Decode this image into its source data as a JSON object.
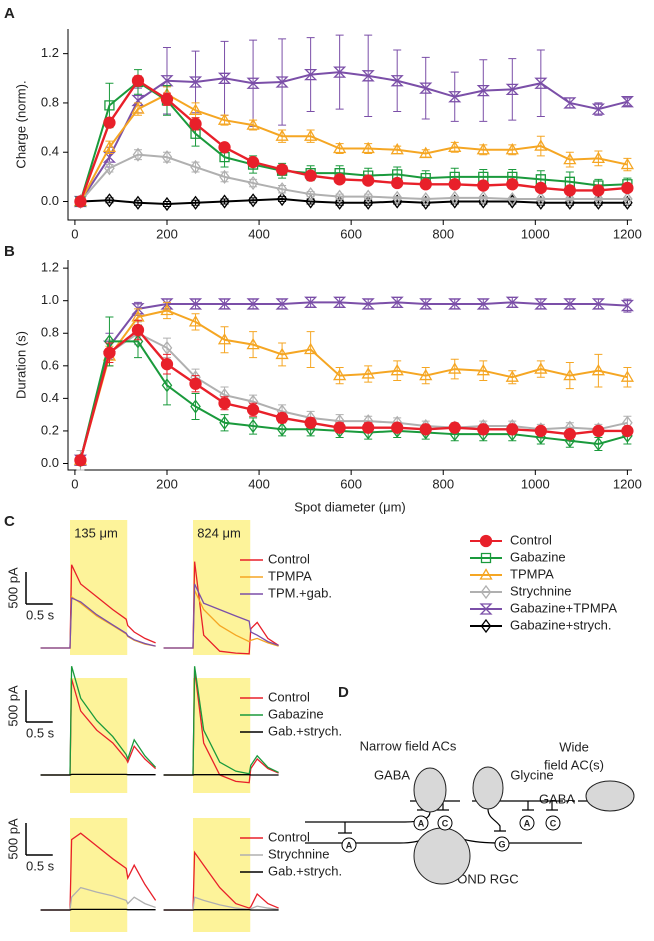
{
  "panel_labels": [
    "A",
    "B",
    "C",
    "D"
  ],
  "chart_data": [
    {
      "type": "line",
      "ylabel": "Charge (norm).",
      "x": [
        12,
        75,
        137,
        200,
        262,
        325,
        387,
        450,
        512,
        575,
        637,
        700,
        762,
        825,
        887,
        950,
        1012,
        1075,
        1137,
        1200
      ],
      "xlim": [
        -15,
        1210
      ],
      "ylim": [
        -0.15,
        1.4
      ],
      "xticks": [
        0,
        200,
        400,
        600,
        800,
        1000,
        1200
      ],
      "yticks": [
        {
          "value": 0,
          "label": "0.0"
        },
        0.4,
        0.8,
        1.2
      ],
      "series": [
        {
          "name": "Control",
          "color": "#e8202a",
          "marker": "circle",
          "values": [
            0,
            0.64,
            0.98,
            0.83,
            0.63,
            0.44,
            0.32,
            0.26,
            0.21,
            0.18,
            0.17,
            0.15,
            0.14,
            0.14,
            0.13,
            0.14,
            0.11,
            0.09,
            0.09,
            0.11
          ],
          "errors": [
            0,
            0.03,
            0.04,
            0.05,
            0.05,
            0.03,
            0.03,
            0.03,
            0.03,
            0.03,
            0.03,
            0.03,
            0.03,
            0.03,
            0.03,
            0.03,
            0.03,
            0.03,
            0.03,
            0.03
          ]
        },
        {
          "name": "Gabazine",
          "color": "#1a9a3c",
          "marker": "square",
          "values": [
            0,
            0.78,
            0.97,
            0.82,
            0.55,
            0.36,
            0.3,
            0.25,
            0.23,
            0.23,
            0.21,
            0.22,
            0.19,
            0.2,
            0.2,
            0.2,
            0.18,
            0.16,
            0.13,
            0.14
          ],
          "errors": [
            0,
            0.18,
            0.1,
            0.12,
            0.1,
            0.08,
            0.07,
            0.06,
            0.06,
            0.06,
            0.06,
            0.06,
            0.06,
            0.07,
            0.06,
            0.06,
            0.07,
            0.08,
            0.05,
            0.05
          ]
        },
        {
          "name": "TPMPA",
          "color": "#f5a623",
          "marker": "triangle",
          "values": [
            0,
            0.44,
            0.75,
            0.87,
            0.74,
            0.66,
            0.62,
            0.53,
            0.53,
            0.43,
            0.43,
            0.42,
            0.39,
            0.44,
            0.42,
            0.42,
            0.45,
            0.34,
            0.35,
            0.3
          ],
          "errors": [
            0,
            0.05,
            0.05,
            0.06,
            0.06,
            0.04,
            0.04,
            0.05,
            0.05,
            0.04,
            0.04,
            0.03,
            0.03,
            0.04,
            0.04,
            0.04,
            0.08,
            0.06,
            0.06,
            0.05
          ]
        },
        {
          "name": "Strychnine",
          "color": "#b0b0b0",
          "marker": "diamond",
          "values": [
            0,
            0.27,
            0.38,
            0.36,
            0.28,
            0.2,
            0.15,
            0.1,
            0.06,
            0.04,
            0.04,
            0.03,
            0.02,
            0.03,
            0.03,
            0.02,
            0.02,
            0.02,
            0.02,
            0.02
          ],
          "errors": [
            0,
            0.03,
            0.04,
            0.04,
            0.04,
            0.04,
            0.03,
            0.03,
            0.02,
            0.02,
            0.02,
            0.01,
            0.01,
            0.01,
            0.01,
            0.01,
            0.01,
            0.01,
            0.01,
            0.01
          ]
        },
        {
          "name": "Gabazine+TPMPA",
          "color": "#7b4fa8",
          "marker": "hourglass",
          "values": [
            0,
            0.36,
            0.82,
            0.98,
            0.97,
            1.0,
            0.96,
            0.97,
            1.03,
            1.05,
            1.02,
            0.98,
            0.92,
            0.85,
            0.9,
            0.91,
            0.96,
            0.8,
            0.75,
            0.81
          ],
          "errors": [
            0,
            0.08,
            0.1,
            0.27,
            0.25,
            0.3,
            0.35,
            0.35,
            0.3,
            0.3,
            0.33,
            0.25,
            0.25,
            0.2,
            0.25,
            0.25,
            0.27,
            0.04,
            0.05,
            0.03
          ]
        },
        {
          "name": "Gabazine+strych.",
          "color": "#000000",
          "marker": "diamond",
          "values": [
            0,
            0.01,
            -0.01,
            -0.02,
            -0.01,
            0,
            0.01,
            0.02,
            0,
            -0.01,
            -0.01,
            0,
            -0.01,
            0,
            0,
            0,
            -0.01,
            -0.01,
            -0.01,
            -0.01
          ],
          "errors": [
            0,
            0.02,
            0.02,
            0.02,
            0.02,
            0.02,
            0.02,
            0.02,
            0.02,
            0.02,
            0.02,
            0.02,
            0.02,
            0.02,
            0.02,
            0.02,
            0.02,
            0.02,
            0.02,
            0.02
          ]
        }
      ]
    },
    {
      "type": "line",
      "ylabel": "Duration (s)",
      "xlabel": "Spot diameter (μm)",
      "x": [
        12,
        75,
        137,
        200,
        262,
        325,
        387,
        450,
        512,
        575,
        637,
        700,
        762,
        825,
        887,
        950,
        1012,
        1075,
        1137,
        1200
      ],
      "xlim": [
        -15,
        1210
      ],
      "ylim": [
        -0.04,
        1.25
      ],
      "xticks": [
        0,
        200,
        400,
        600,
        800,
        1000,
        1200
      ],
      "yticks": [
        {
          "value": 0,
          "label": "0.0"
        },
        0.2,
        0.4,
        0.6,
        0.8,
        {
          "value": 1,
          "label": "1.0"
        },
        1.2
      ],
      "series": [
        {
          "color": "#e8202a",
          "marker": "circle",
          "values": [
            0.02,
            0.68,
            0.82,
            0.61,
            0.49,
            0.37,
            0.33,
            0.28,
            0.25,
            0.22,
            0.22,
            0.22,
            0.21,
            0.22,
            0.21,
            0.21,
            0.2,
            0.18,
            0.2,
            0.2
          ],
          "errors": [
            0.03,
            0.06,
            0.06,
            0.06,
            0.05,
            0.04,
            0.04,
            0.03,
            0.03,
            0.03,
            0.03,
            0.02,
            0.02,
            0.02,
            0.02,
            0.02,
            0.02,
            0.02,
            0.02,
            0.02
          ]
        },
        {
          "color": "#1a9a3c",
          "marker": "diamond",
          "values": [
            0.02,
            0.75,
            0.75,
            0.48,
            0.35,
            0.25,
            0.23,
            0.21,
            0.21,
            0.2,
            0.19,
            0.2,
            0.19,
            0.18,
            0.18,
            0.18,
            0.16,
            0.14,
            0.12,
            0.17
          ],
          "errors": [
            0.03,
            0.15,
            0.1,
            0.12,
            0.08,
            0.05,
            0.05,
            0.04,
            0.04,
            0.04,
            0.04,
            0.04,
            0.04,
            0.04,
            0.04,
            0.04,
            0.04,
            0.04,
            0.04,
            0.05
          ]
        },
        {
          "color": "#f5a623",
          "marker": "triangle",
          "values": [
            0.02,
            0.66,
            0.9,
            0.94,
            0.87,
            0.76,
            0.73,
            0.67,
            0.7,
            0.54,
            0.55,
            0.57,
            0.54,
            0.58,
            0.57,
            0.53,
            0.58,
            0.54,
            0.57,
            0.53
          ],
          "errors": [
            0.03,
            0.06,
            0.05,
            0.05,
            0.05,
            0.08,
            0.08,
            0.07,
            0.11,
            0.05,
            0.05,
            0.06,
            0.05,
            0.06,
            0.06,
            0.04,
            0.05,
            0.08,
            0.1,
            0.06
          ]
        },
        {
          "color": "#b0b0b0",
          "marker": "diamond",
          "values": [
            0.02,
            0.68,
            0.8,
            0.71,
            0.53,
            0.42,
            0.38,
            0.32,
            0.28,
            0.26,
            0.26,
            0.25,
            0.23,
            0.22,
            0.23,
            0.23,
            0.21,
            0.22,
            0.21,
            0.25
          ],
          "errors": [
            0.06,
            0.08,
            0.07,
            0.06,
            0.05,
            0.05,
            0.04,
            0.04,
            0.04,
            0.04,
            0.03,
            0.03,
            0.03,
            0.03,
            0.03,
            0.03,
            0.03,
            0.03,
            0.03,
            0.04
          ]
        },
        {
          "color": "#7b4fa8",
          "marker": "hourglass",
          "values": [
            0.02,
            0.72,
            0.95,
            0.98,
            0.98,
            0.98,
            0.98,
            0.98,
            0.99,
            0.99,
            0.98,
            0.99,
            0.98,
            0.98,
            0.98,
            0.99,
            0.98,
            0.98,
            0.98,
            0.97
          ],
          "errors": [
            0.03,
            0.08,
            0.04,
            0.03,
            0.03,
            0.03,
            0.03,
            0.03,
            0.03,
            0.03,
            0.03,
            0.03,
            0.03,
            0.03,
            0.03,
            0.03,
            0.03,
            0.03,
            0.03,
            0.04
          ]
        }
      ]
    },
    {
      "type": "traces",
      "columns": [
        "135 μm",
        "824 μm"
      ],
      "x": [
        -0.55,
        -0.02,
        0,
        0.03,
        0.2,
        0.5,
        0.8,
        1.05,
        1.08,
        1.2,
        1.4,
        1.6
      ],
      "stimulus_window": [
        0,
        1.07
      ],
      "scale_bar": {
        "y": {
          "value": 500,
          "label": "500 pA"
        },
        "x": {
          "value": 0.5,
          "label": "0.5 s"
        }
      },
      "series": [
        {
          "name": "Control",
          "color": "#e8202a",
          "traces": [
            {
              "values": [
                0,
                0,
                0,
                1300,
                1000,
                800,
                600,
                450,
                350,
                250,
                150,
                80
              ]
            },
            {
              "values": [
                0,
                0,
                0,
                1350,
                200,
                -50,
                -80,
                -90,
                300,
                400,
                150,
                40
              ]
            }
          ]
        },
        {
          "name": "TPMPA",
          "color": "#f5a623",
          "traces": [
            {
              "values": [
                0,
                0,
                0,
                800,
                700,
                500,
                350,
                220,
                180,
                120,
                60,
                30
              ]
            },
            {
              "values": [
                0,
                0,
                0,
                900,
                600,
                350,
                200,
                100,
                120,
                150,
                80,
                30
              ]
            }
          ]
        },
        {
          "name": "TPM.+gab.",
          "color": "#7b4fa8",
          "traces": [
            {
              "values": [
                0,
                0,
                0,
                780,
                720,
                520,
                360,
                230,
                190,
                130,
                70,
                30
              ]
            },
            {
              "values": [
                0,
                0,
                0,
                1000,
                700,
                600,
                500,
                420,
                250,
                200,
                100,
                40
              ]
            }
          ]
        }
      ]
    },
    {
      "type": "traces",
      "x": [
        -0.55,
        -0.02,
        0,
        0.03,
        0.2,
        0.5,
        0.8,
        1.05,
        1.08,
        1.2,
        1.4,
        1.6
      ],
      "stimulus_window": [
        0,
        1.07
      ],
      "scale_bar": {
        "y": {
          "value": 500,
          "label": "500 pA"
        },
        "x": {
          "value": 0.5,
          "label": "0.5 s"
        }
      },
      "series": [
        {
          "name": "Control",
          "color": "#e8202a",
          "traces": [
            {
              "values": [
                0,
                0,
                0,
                1500,
                1000,
                700,
                500,
                250,
                200,
                450,
                250,
                100
              ]
            },
            {
              "values": [
                0,
                0,
                0,
                1650,
                500,
                0,
                -100,
                -120,
                100,
                250,
                100,
                30
              ]
            }
          ]
        },
        {
          "name": "Gabazine",
          "color": "#1a9a3c",
          "traces": [
            {
              "values": [
                0,
                0,
                0,
                1700,
                1200,
                850,
                600,
                320,
                250,
                550,
                300,
                120
              ]
            },
            {
              "values": [
                0,
                0,
                0,
                1700,
                700,
                200,
                60,
                20,
                150,
                300,
                120,
                40
              ]
            }
          ]
        },
        {
          "name": "Gab.+strych.",
          "color": "#000000",
          "traces": [
            {
              "values": [
                0,
                0,
                0,
                10,
                10,
                10,
                10,
                10,
                5,
                5,
                5,
                5
              ]
            },
            {
              "values": [
                0,
                0,
                0,
                5,
                5,
                5,
                5,
                5,
                0,
                0,
                0,
                0
              ]
            }
          ]
        }
      ]
    },
    {
      "type": "traces",
      "x": [
        -0.55,
        -0.02,
        0,
        0.03,
        0.2,
        0.5,
        0.8,
        1.05,
        1.08,
        1.2,
        1.4,
        1.6
      ],
      "stimulus_window": [
        0,
        1.07
      ],
      "scale_bar": {
        "y": {
          "value": 500,
          "label": "500 pA"
        },
        "x": {
          "value": 0.5,
          "label": "0.5 s"
        }
      },
      "series": [
        {
          "name": "Control",
          "color": "#e8202a",
          "traces": [
            {
              "values": [
                0,
                0,
                0,
                1100,
                1200,
                1000,
                800,
                650,
                500,
                700,
                400,
                150
              ]
            },
            {
              "values": [
                0,
                0,
                0,
                900,
                700,
                350,
                100,
                30,
                50,
                250,
                100,
                30
              ]
            }
          ]
        },
        {
          "name": "Strychnine",
          "color": "#b0b0b0",
          "traces": [
            {
              "values": [
                0,
                0,
                0,
                200,
                350,
                280,
                220,
                150,
                100,
                200,
                100,
                40
              ]
            },
            {
              "values": [
                0,
                0,
                0,
                200,
                150,
                80,
                30,
                10,
                20,
                60,
                30,
                10
              ]
            }
          ]
        },
        {
          "name": "Gab.+strych.",
          "color": "#000000",
          "traces": [
            {
              "values": [
                0,
                0,
                0,
                10,
                10,
                10,
                10,
                10,
                5,
                5,
                5,
                5
              ]
            },
            {
              "values": [
                0,
                0,
                0,
                5,
                5,
                5,
                5,
                5,
                0,
                0,
                0,
                0
              ]
            }
          ]
        }
      ]
    }
  ],
  "diagram": {
    "narrow_label": "Narrow field ACs",
    "wide_label": [
      "Wide",
      "field AC(s)"
    ],
    "cells": [
      "GABA",
      "Glycine",
      "GABA"
    ],
    "rgc": "OND RGC",
    "synapses": [
      "A",
      "C",
      "A",
      "C",
      "A",
      "G"
    ]
  }
}
